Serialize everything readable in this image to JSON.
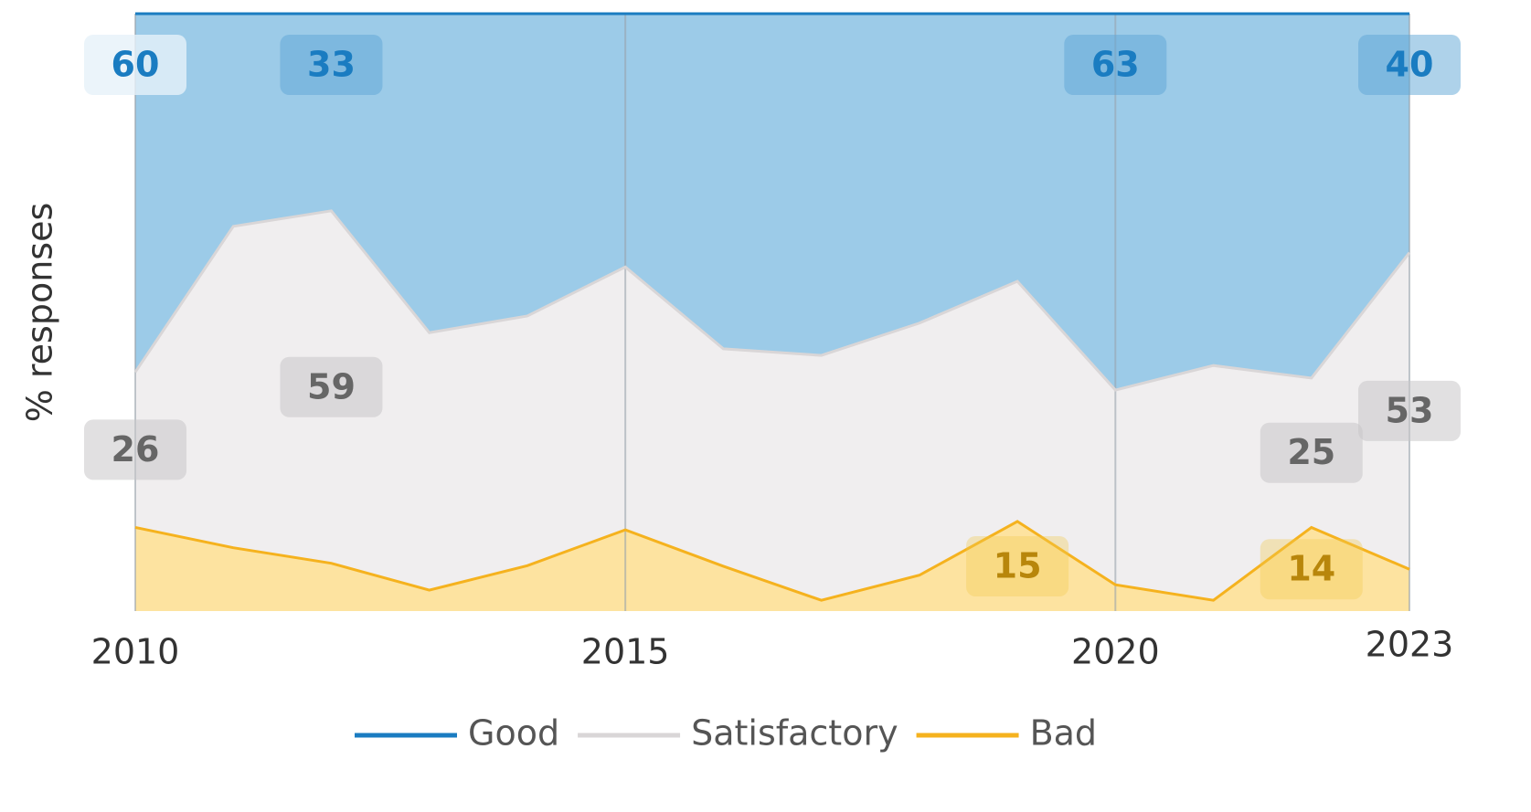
{
  "chart_data": {
    "type": "stacked_area",
    "y_label": "% responses",
    "x": [
      2010,
      2011,
      2012,
      2013,
      2014,
      2015,
      2016,
      2017,
      2018,
      2019,
      2020,
      2021,
      2022,
      2023
    ],
    "xlim": [
      2010,
      2023
    ],
    "xticks": [
      2010,
      2015,
      2020,
      2023
    ],
    "ylim": [
      0,
      100
    ],
    "grid": true,
    "legend": "bottom",
    "series": [
      {
        "name": "Bad",
        "color": "#f5b21e",
        "fill": "#fde3a0",
        "values": [
          14,
          10.6,
          8,
          3.5,
          7.6,
          13.6,
          7.5,
          1.8,
          6,
          15,
          4.4,
          1.8,
          14,
          7
        ],
        "value_labels": [
          null,
          null,
          null,
          null,
          null,
          null,
          null,
          null,
          null,
          "15",
          null,
          null,
          "14",
          null
        ]
      },
      {
        "name": "Satisfactory",
        "color": "#d9d6d7",
        "fill": "#f0eeef",
        "values": [
          26,
          53.8,
          59,
          43.1,
          41.8,
          44,
          36.4,
          41,
          42.2,
          40.2,
          32.6,
          39.3,
          25,
          53
        ],
        "value_labels": [
          "26",
          null,
          "59",
          null,
          null,
          null,
          null,
          null,
          null,
          null,
          null,
          null,
          "25",
          "53"
        ]
      },
      {
        "name": "Good",
        "color": "#1a7cc1",
        "fill": "#9ccbe8",
        "values": [
          60,
          35.6,
          33,
          53.4,
          50.6,
          42.4,
          56.1,
          57.2,
          51.8,
          44.8,
          63,
          58.9,
          61,
          40
        ],
        "value_labels": [
          "60",
          null,
          "33",
          null,
          null,
          null,
          null,
          null,
          null,
          null,
          "63",
          null,
          null,
          "40"
        ]
      }
    ]
  }
}
